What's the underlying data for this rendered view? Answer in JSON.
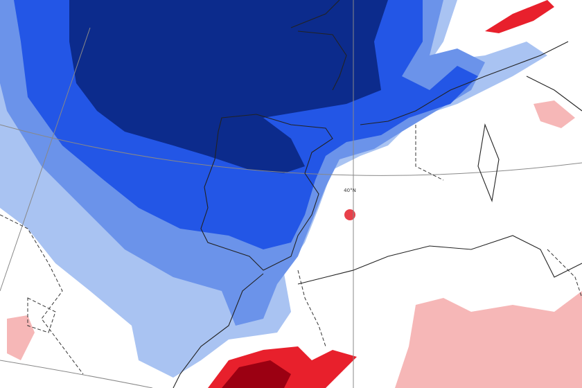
{
  "map": {
    "latitude_label": "40°N"
  }
}
